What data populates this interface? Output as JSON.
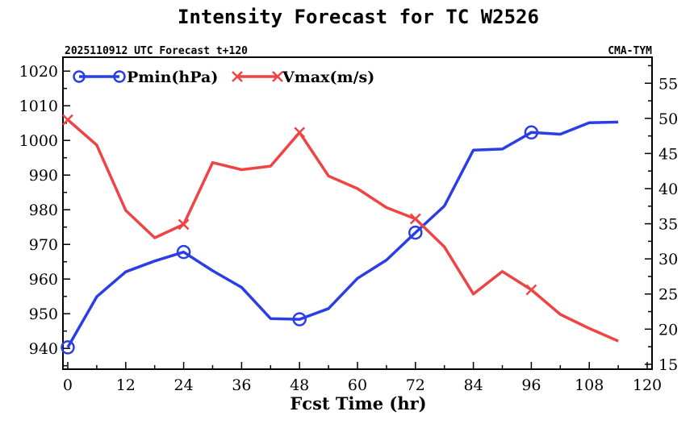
{
  "chart_data": {
    "type": "line",
    "title": "Intensity Forecast for TC W2526",
    "subtitle_left": "2025110912 UTC Forecast t+120",
    "subtitle_right": "CMA-TYM",
    "xlabel": "Fcst Time (hr)",
    "xlim": [
      -1,
      121
    ],
    "xticks": [
      0,
      12,
      24,
      36,
      48,
      60,
      72,
      84,
      96,
      108,
      120
    ],
    "x": [
      0,
      6,
      12,
      18,
      24,
      30,
      36,
      42,
      48,
      54,
      60,
      66,
      72,
      78,
      84,
      90,
      96,
      102,
      108,
      114
    ],
    "y_left": {
      "label": "Pmin(hPa)",
      "lim": [
        934,
        1024
      ],
      "ticks": [
        940,
        950,
        960,
        970,
        980,
        990,
        1000,
        1010,
        1020
      ]
    },
    "y_right": {
      "label": "Vmax(m/s)",
      "lim": [
        14.3,
        58.7
      ],
      "ticks": [
        15,
        20,
        25,
        30,
        35,
        40,
        45,
        50,
        55
      ]
    },
    "series": [
      {
        "name": "Pmin(hPa)",
        "axis": "left",
        "color": "#2a3ee6",
        "marker": "circle",
        "marker_every": 4,
        "values": [
          940.3,
          954.9,
          962.1,
          965.2,
          967.8,
          962.4,
          957.6,
          948.6,
          948.4,
          951.5,
          960.2,
          965.5,
          973.4,
          981.1,
          997.2,
          997.5,
          1002.3,
          1001.8,
          1005.1,
          1005.3
        ]
      },
      {
        "name": "Vmax(m/s)",
        "axis": "right",
        "color": "#ee4444",
        "marker": "x",
        "marker_every": 4,
        "values": [
          49.8,
          46.2,
          36.9,
          33.0,
          34.9,
          43.7,
          42.7,
          43.2,
          48.0,
          41.8,
          40.0,
          37.3,
          35.7,
          31.7,
          25.0,
          28.2,
          25.6,
          22.1,
          20.1,
          18.3
        ]
      }
    ]
  }
}
